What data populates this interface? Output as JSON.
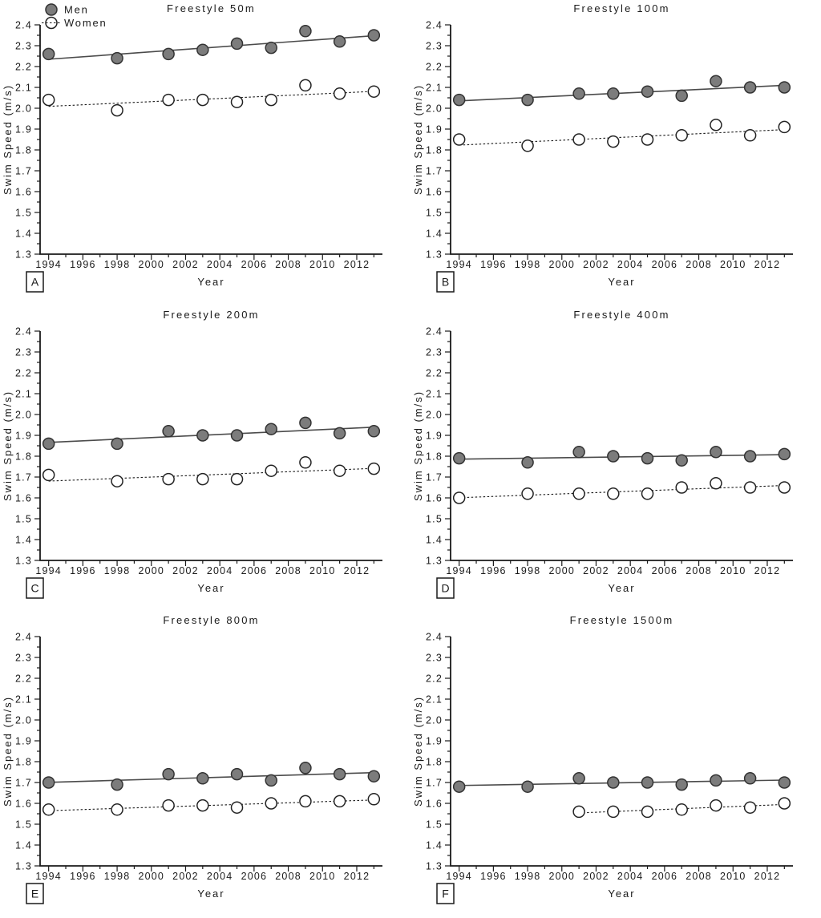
{
  "figure": {
    "background": "#ffffff",
    "xlabel": "Year",
    "ylabel": "Swim Speed (m/s)",
    "legend": {
      "position": "top-left-panel-A",
      "men_label": "Men",
      "women_label": "Women"
    },
    "colors": {
      "men_fill": "#7c7c7c",
      "men_edge": "#333333",
      "men_trend": "#4b4b4b",
      "women_fill": "#ffffff",
      "women_edge": "#222222",
      "women_trend": "#1a1a1a",
      "axis": "#1a1a1a",
      "text": "#1a1a1a"
    },
    "axes": {
      "xlim": [
        1993.5,
        2013.5
      ],
      "ylim": [
        1.3,
        2.4
      ],
      "x_major_ticks": [
        1994,
        1996,
        1998,
        2000,
        2002,
        2004,
        2006,
        2008,
        2010,
        2012
      ],
      "x_minor_ticks": [
        1995,
        1997,
        1999,
        2001,
        2003,
        2005,
        2007,
        2009,
        2011,
        2013
      ],
      "y_major_step": 0.1,
      "y_minor_step": 0.05,
      "grid": false
    }
  },
  "chart_data": [
    {
      "type": "scatter",
      "panel_label": "A",
      "title": "Freestyle 50m",
      "xlabel": "Year",
      "ylabel": "Swim Speed (m/s)",
      "xlim": [
        1993.5,
        2013.5
      ],
      "ylim": [
        1.3,
        2.4
      ],
      "show_legend": true,
      "series": [
        {
          "name": "Men",
          "style": "men",
          "marker": "filled-circle",
          "trend": "solid",
          "x": [
            1994,
            1998,
            2001,
            2003,
            2005,
            2007,
            2009,
            2011,
            2013
          ],
          "y": [
            2.26,
            2.24,
            2.26,
            2.28,
            2.31,
            2.29,
            2.37,
            2.32,
            2.35
          ]
        },
        {
          "name": "Women",
          "style": "women",
          "marker": "open-circle",
          "trend": "dotted",
          "x": [
            1994,
            1998,
            2001,
            2003,
            2005,
            2007,
            2009,
            2011,
            2013
          ],
          "y": [
            2.04,
            1.99,
            2.04,
            2.04,
            2.03,
            2.04,
            2.11,
            2.07,
            2.08
          ]
        }
      ]
    },
    {
      "type": "scatter",
      "panel_label": "B",
      "title": "Freestyle 100m",
      "xlabel": "Year",
      "ylabel": "Swim Speed (m/s)",
      "xlim": [
        1993.5,
        2013.5
      ],
      "ylim": [
        1.3,
        2.4
      ],
      "show_legend": false,
      "series": [
        {
          "name": "Men",
          "style": "men",
          "marker": "filled-circle",
          "trend": "solid",
          "x": [
            1994,
            1998,
            2001,
            2003,
            2005,
            2007,
            2009,
            2011,
            2013
          ],
          "y": [
            2.04,
            2.04,
            2.07,
            2.07,
            2.08,
            2.06,
            2.13,
            2.1,
            2.1
          ]
        },
        {
          "name": "Women",
          "style": "women",
          "marker": "open-circle",
          "trend": "dotted",
          "x": [
            1994,
            1998,
            2001,
            2003,
            2005,
            2007,
            2009,
            2011,
            2013
          ],
          "y": [
            1.85,
            1.82,
            1.85,
            1.84,
            1.85,
            1.87,
            1.92,
            1.87,
            1.91
          ]
        }
      ]
    },
    {
      "type": "scatter",
      "panel_label": "C",
      "title": "Freestyle 200m",
      "xlabel": "Year",
      "ylabel": "Swim Speed (m/s)",
      "xlim": [
        1993.5,
        2013.5
      ],
      "ylim": [
        1.3,
        2.4
      ],
      "show_legend": false,
      "series": [
        {
          "name": "Men",
          "style": "men",
          "marker": "filled-circle",
          "trend": "solid",
          "x": [
            1994,
            1998,
            2001,
            2003,
            2005,
            2007,
            2009,
            2011,
            2013
          ],
          "y": [
            1.86,
            1.86,
            1.92,
            1.9,
            1.9,
            1.93,
            1.96,
            1.91,
            1.92
          ]
        },
        {
          "name": "Women",
          "style": "women",
          "marker": "open-circle",
          "trend": "dotted",
          "x": [
            1994,
            1998,
            2001,
            2003,
            2005,
            2007,
            2009,
            2011,
            2013
          ],
          "y": [
            1.71,
            1.68,
            1.69,
            1.69,
            1.69,
            1.73,
            1.77,
            1.73,
            1.74
          ]
        }
      ]
    },
    {
      "type": "scatter",
      "panel_label": "D",
      "title": "Freestyle 400m",
      "xlabel": "Year",
      "ylabel": "Swim Speed (m/s)",
      "xlim": [
        1993.5,
        2013.5
      ],
      "ylim": [
        1.3,
        2.4
      ],
      "show_legend": false,
      "series": [
        {
          "name": "Men",
          "style": "men",
          "marker": "filled-circle",
          "trend": "solid",
          "x": [
            1994,
            1998,
            2001,
            2003,
            2005,
            2007,
            2009,
            2011,
            2013
          ],
          "y": [
            1.79,
            1.77,
            1.82,
            1.8,
            1.79,
            1.78,
            1.82,
            1.8,
            1.81
          ]
        },
        {
          "name": "Women",
          "style": "women",
          "marker": "open-circle",
          "trend": "dotted",
          "x": [
            1994,
            1998,
            2001,
            2003,
            2005,
            2007,
            2009,
            2011,
            2013
          ],
          "y": [
            1.6,
            1.62,
            1.62,
            1.62,
            1.62,
            1.65,
            1.67,
            1.65,
            1.65
          ]
        }
      ]
    },
    {
      "type": "scatter",
      "panel_label": "E",
      "title": "Freestyle 800m",
      "xlabel": "Year",
      "ylabel": "Swim Speed (m/s)",
      "xlim": [
        1993.5,
        2013.5
      ],
      "ylim": [
        1.3,
        2.4
      ],
      "show_legend": false,
      "series": [
        {
          "name": "Men",
          "style": "men",
          "marker": "filled-circle",
          "trend": "solid",
          "x": [
            1994,
            1998,
            2001,
            2003,
            2005,
            2007,
            2009,
            2011,
            2013
          ],
          "y": [
            1.7,
            1.69,
            1.74,
            1.72,
            1.74,
            1.71,
            1.77,
            1.74,
            1.73
          ]
        },
        {
          "name": "Women",
          "style": "women",
          "marker": "open-circle",
          "trend": "dotted",
          "x": [
            1994,
            1998,
            2001,
            2003,
            2005,
            2007,
            2009,
            2011,
            2013
          ],
          "y": [
            1.57,
            1.57,
            1.59,
            1.59,
            1.58,
            1.6,
            1.61,
            1.61,
            1.62
          ]
        }
      ]
    },
    {
      "type": "scatter",
      "panel_label": "F",
      "title": "Freestyle 1500m",
      "xlabel": "Year",
      "ylabel": "Swim Speed (m/s)",
      "xlim": [
        1993.5,
        2013.5
      ],
      "ylim": [
        1.3,
        2.4
      ],
      "show_legend": false,
      "series": [
        {
          "name": "Men",
          "style": "men",
          "marker": "filled-circle",
          "trend": "solid",
          "x": [
            1994,
            1998,
            2001,
            2003,
            2005,
            2007,
            2009,
            2011,
            2013
          ],
          "y": [
            1.68,
            1.68,
            1.72,
            1.7,
            1.7,
            1.69,
            1.71,
            1.72,
            1.7
          ]
        },
        {
          "name": "Women",
          "style": "women",
          "marker": "open-circle",
          "trend": "dotted",
          "x": [
            2001,
            2003,
            2005,
            2007,
            2009,
            2011,
            2013
          ],
          "y": [
            1.56,
            1.56,
            1.56,
            1.57,
            1.59,
            1.58,
            1.6
          ]
        }
      ]
    }
  ]
}
